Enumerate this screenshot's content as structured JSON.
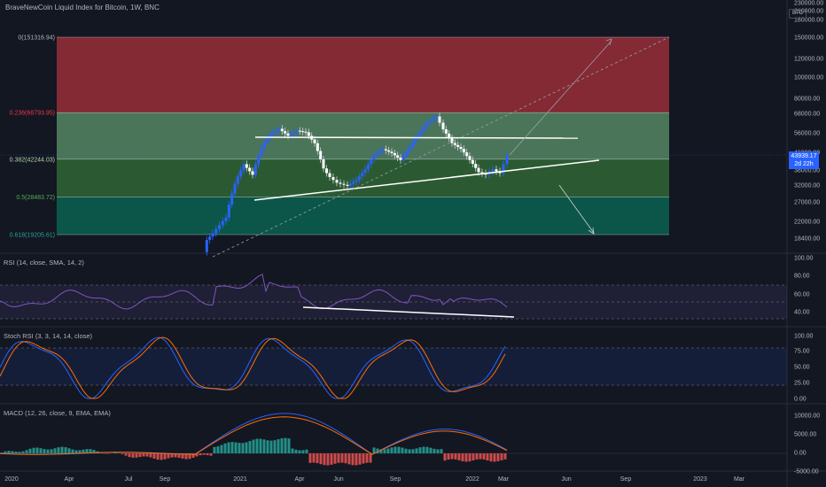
{
  "header": {
    "title": "BraveNewCoin Liquid Index for Bitcoin, 1W, BNC",
    "currency_badge": "BTC"
  },
  "price_tag": {
    "price": "43939.17",
    "countdown": "2d 22h"
  },
  "colors": {
    "background": "#131722",
    "up": "#2962ff",
    "down": "#ffffff",
    "rsi": "#7e57c2",
    "stoch_k": "#2962ff",
    "stoch_d": "#ff6d00",
    "macd": "#2962ff",
    "signal": "#ff6d00",
    "fib_top": "#8a2b36",
    "fib_236": "#4e7a5c",
    "fib_382": "#2c5e34",
    "fib_5": "#0b5a4c"
  },
  "main_axis": {
    "ticks": [
      "230000.00",
      "210000.00",
      "180000.00",
      "150000.00",
      "120000.00",
      "100000.00",
      "80000.00",
      "68000.00",
      "56000.00",
      "46000.00",
      "38000.00",
      "32000.00",
      "27000.00",
      "22000.00",
      "18400.00"
    ]
  },
  "fib_levels": [
    {
      "label": "0(151316.94)",
      "value": 151316.94
    },
    {
      "label": "0.236(68793.95)",
      "value": 68793.95
    },
    {
      "label": "0.382(42244.03)",
      "value": 42244.03
    },
    {
      "label": "0.5(28483.72)",
      "value": 28483.72
    },
    {
      "label": "0.618(19205.61)",
      "value": 19205.61
    }
  ],
  "time_axis": [
    "2020",
    "Apr",
    "Jul",
    "Sep",
    "2021",
    "Apr",
    "Jun",
    "Sep",
    "2022",
    "Mar",
    "Jun",
    "Sep",
    "2023",
    "Mar"
  ],
  "indicators": {
    "rsi": {
      "label": "RSI (14, close, SMA, 14, 2)",
      "ticks": [
        "100.00",
        "80.00",
        "60.00",
        "40.00"
      ]
    },
    "stoch": {
      "label": "Stoch RSI (3, 3, 14, 14, close)",
      "ticks": [
        "100.00",
        "75.00",
        "50.00",
        "25.00",
        "0.00"
      ]
    },
    "macd": {
      "label": "MACD (12, 26, close, 9, EMA, EMA)",
      "ticks": [
        "10000.00",
        "5000.00",
        "0.00",
        "-5000.00"
      ]
    }
  },
  "chart_data": {
    "type": "candlestick",
    "title": "BraveNewCoin Liquid Index for Bitcoin, 1W, BNC",
    "last_price": 43939.17,
    "weekly_close_approx": [
      {
        "x": "2021-01",
        "y": 33000
      },
      {
        "x": "2021-03",
        "y": 57000
      },
      {
        "x": "2021-04",
        "y": 58000
      },
      {
        "x": "2021-06",
        "y": 35000
      },
      {
        "x": "2021-07",
        "y": 32000
      },
      {
        "x": "2021-09",
        "y": 46000
      },
      {
        "x": "2021-11",
        "y": 65000
      },
      {
        "x": "2022-01",
        "y": 36000
      },
      {
        "x": "2022-02",
        "y": 43939
      }
    ]
  }
}
